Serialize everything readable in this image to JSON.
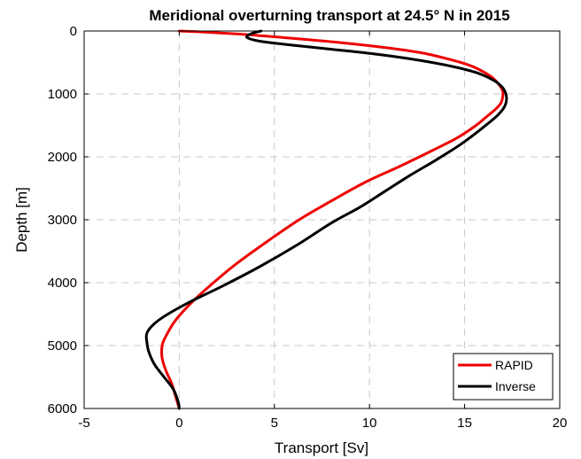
{
  "chart_data": {
    "type": "line",
    "title": "Meridional overturning transport at 24.5° N in 2015",
    "xlabel": "Transport [Sv]",
    "ylabel": "Depth [m]",
    "xlim": [
      -5,
      20
    ],
    "ylim": [
      0,
      6000
    ],
    "y_reversed": true,
    "grid": true,
    "x_ticks": [
      -5,
      0,
      5,
      10,
      15,
      20
    ],
    "y_ticks": [
      0,
      1000,
      2000,
      3000,
      4000,
      5000,
      6000
    ],
    "legend_position": "bottom-right",
    "series": [
      {
        "name": "RAPID",
        "color": "#ee0000",
        "points": [
          [
            0,
            0
          ],
          [
            1.5,
            20
          ],
          [
            3.2,
            50
          ],
          [
            4.5,
            80
          ],
          [
            6.5,
            130
          ],
          [
            9.0,
            200
          ],
          [
            11.0,
            270
          ],
          [
            12.8,
            350
          ],
          [
            14.2,
            450
          ],
          [
            15.3,
            550
          ],
          [
            16.0,
            650
          ],
          [
            16.5,
            750
          ],
          [
            16.8,
            850
          ],
          [
            17.0,
            950
          ],
          [
            17.0,
            1050
          ],
          [
            16.9,
            1150
          ],
          [
            16.6,
            1250
          ],
          [
            16.2,
            1350
          ],
          [
            15.6,
            1500
          ],
          [
            14.6,
            1700
          ],
          [
            13.3,
            1900
          ],
          [
            11.6,
            2150
          ],
          [
            9.8,
            2400
          ],
          [
            8.0,
            2700
          ],
          [
            6.3,
            3000
          ],
          [
            4.6,
            3350
          ],
          [
            3.0,
            3700
          ],
          [
            1.8,
            4000
          ],
          [
            0.7,
            4300
          ],
          [
            -0.2,
            4600
          ],
          [
            -0.7,
            4850
          ],
          [
            -0.9,
            5000
          ],
          [
            -0.9,
            5200
          ],
          [
            -0.7,
            5400
          ],
          [
            -0.4,
            5600
          ],
          [
            -0.2,
            5800
          ],
          [
            0,
            6000
          ]
        ]
      },
      {
        "name": "Inverse",
        "color": "#000000",
        "points": [
          [
            4.3,
            0
          ],
          [
            3.9,
            30
          ],
          [
            3.6,
            70
          ],
          [
            3.6,
            110
          ],
          [
            4.2,
            160
          ],
          [
            5.8,
            220
          ],
          [
            8.0,
            290
          ],
          [
            10.4,
            370
          ],
          [
            12.5,
            460
          ],
          [
            14.3,
            560
          ],
          [
            15.6,
            660
          ],
          [
            16.5,
            780
          ],
          [
            17.0,
            900
          ],
          [
            17.2,
            1050
          ],
          [
            17.1,
            1200
          ],
          [
            16.7,
            1350
          ],
          [
            15.9,
            1550
          ],
          [
            14.8,
            1800
          ],
          [
            13.5,
            2050
          ],
          [
            12.1,
            2300
          ],
          [
            10.8,
            2550
          ],
          [
            9.5,
            2800
          ],
          [
            8.0,
            3050
          ],
          [
            6.2,
            3400
          ],
          [
            4.2,
            3750
          ],
          [
            2.3,
            4050
          ],
          [
            0.6,
            4300
          ],
          [
            -0.6,
            4500
          ],
          [
            -1.3,
            4650
          ],
          [
            -1.7,
            4800
          ],
          [
            -1.7,
            4950
          ],
          [
            -1.6,
            5100
          ],
          [
            -1.3,
            5300
          ],
          [
            -0.8,
            5500
          ],
          [
            -0.3,
            5700
          ],
          [
            -0.05,
            5900
          ],
          [
            0,
            6000
          ]
        ]
      }
    ]
  }
}
